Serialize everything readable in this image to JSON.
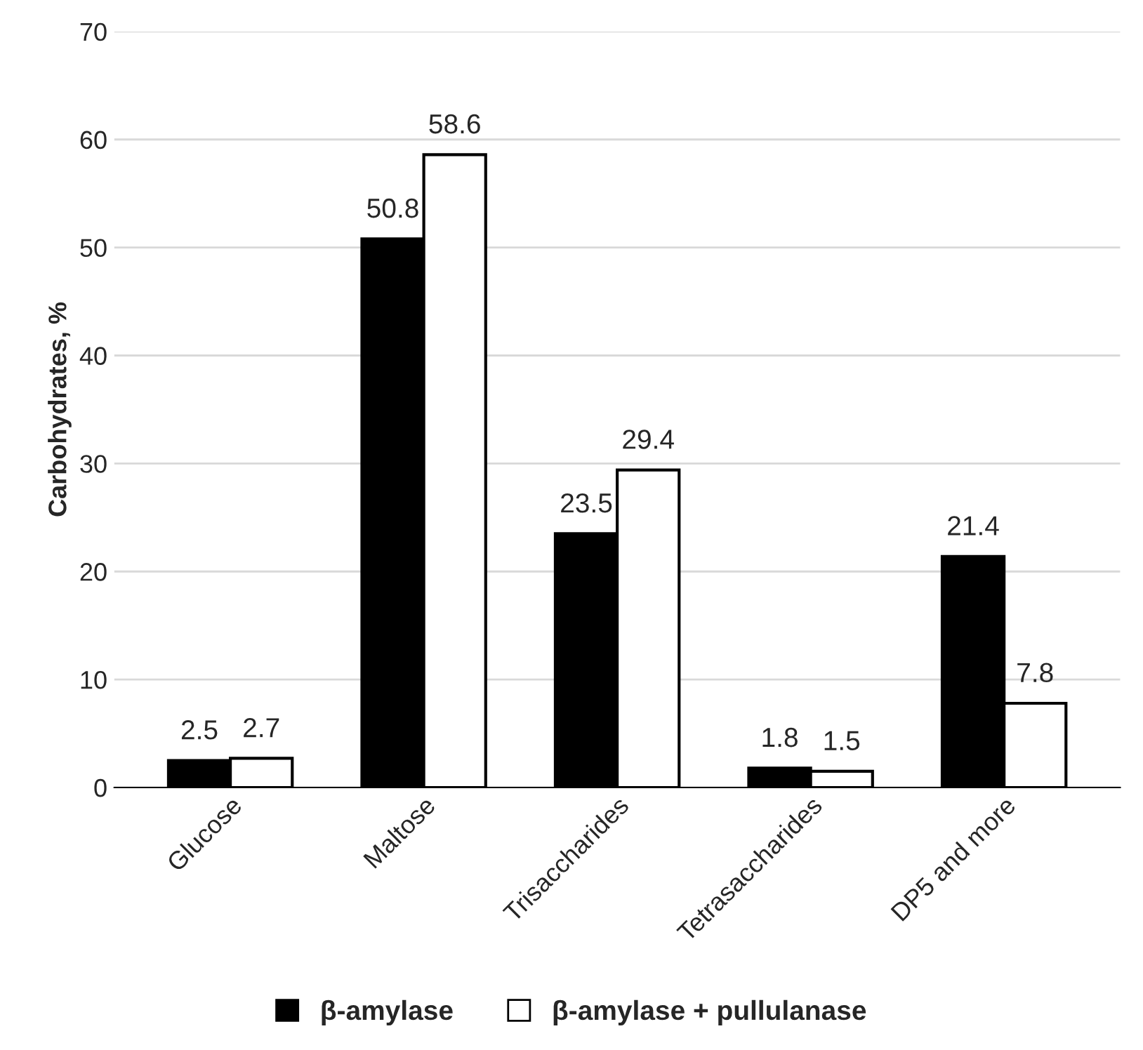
{
  "chart_data": {
    "type": "bar",
    "ylabel": "Carbohydrates, %",
    "categories": [
      "Glucose",
      "Maltose",
      "Trisaccharides",
      "Tetrasaccharides",
      "DP5 and more"
    ],
    "series": [
      {
        "name": "β-amylase",
        "color": "#000000",
        "values": [
          2.5,
          50.8,
          23.5,
          1.8,
          21.4
        ]
      },
      {
        "name": "β-amylase + pullulanase",
        "color": "#ffffff",
        "values": [
          2.7,
          58.6,
          29.4,
          1.5,
          7.8
        ]
      }
    ],
    "ylim": [
      0,
      70
    ],
    "yticks": [
      0,
      10,
      20,
      30,
      40,
      50,
      60,
      70
    ],
    "grid": "y",
    "legend": "bottom",
    "data_labels": true
  }
}
